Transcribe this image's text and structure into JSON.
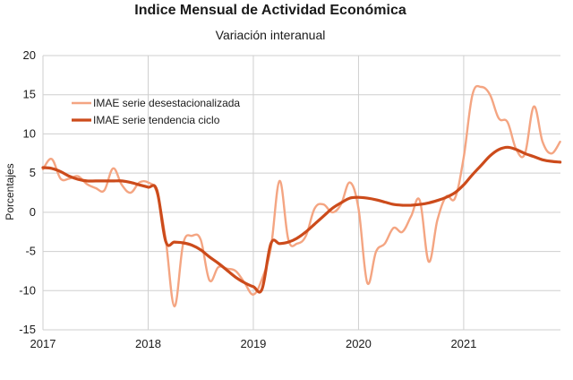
{
  "chart_data": {
    "type": "line",
    "title": "Indice Mensual de  Actividad Económica",
    "subtitle": "Variación interanual",
    "ylabel": "Porcentajes",
    "xlabel": "",
    "ylim": [
      -15,
      20
    ],
    "yticks": [
      20,
      15,
      10,
      5,
      0,
      -5,
      -10,
      -15
    ],
    "xlim": [
      2017,
      2021.92
    ],
    "xticks": [
      "2017",
      "2018",
      "2019",
      "2020",
      "2021"
    ],
    "grid": true,
    "legend": "top-left",
    "series": [
      {
        "name": "IMAE serie desestacionalizada",
        "color": "#f4a582",
        "x": [
          2017.0,
          2017.083,
          2017.167,
          2017.25,
          2017.333,
          2017.417,
          2017.5,
          2017.583,
          2017.667,
          2017.75,
          2017.833,
          2017.917,
          2018.0,
          2018.083,
          2018.167,
          2018.25,
          2018.333,
          2018.417,
          2018.5,
          2018.583,
          2018.667,
          2018.75,
          2018.833,
          2018.917,
          2019.0,
          2019.083,
          2019.167,
          2019.25,
          2019.333,
          2019.417,
          2019.5,
          2019.583,
          2019.667,
          2019.75,
          2019.833,
          2019.917,
          2020.0,
          2020.083,
          2020.167,
          2020.25,
          2020.333,
          2020.417,
          2020.5,
          2020.583,
          2020.667,
          2020.75,
          2020.833,
          2020.917,
          2021.0,
          2021.083,
          2021.167,
          2021.25,
          2021.333,
          2021.417,
          2021.5,
          2021.583,
          2021.667,
          2021.75,
          2021.833,
          2021.917
        ],
        "y": [
          5.5,
          6.8,
          4.3,
          4.3,
          4.6,
          3.6,
          3.1,
          2.8,
          5.6,
          3.5,
          2.5,
          3.8,
          3.8,
          2.5,
          -3.5,
          -12.0,
          -4.0,
          -3.0,
          -3.5,
          -8.7,
          -7.0,
          -7.2,
          -7.5,
          -9.0,
          -10.5,
          -8.5,
          -4.5,
          4.0,
          -3.5,
          -4.0,
          -3.0,
          0.5,
          1.0,
          0.0,
          1.0,
          3.8,
          0.5,
          -9.0,
          -5.0,
          -4.0,
          -2.0,
          -2.5,
          -0.5,
          1.5,
          -6.3,
          -1.0,
          2.0,
          1.8,
          7.0,
          15.0,
          16.0,
          15.0,
          12.0,
          11.5,
          8.0,
          7.5,
          13.5,
          9.0,
          7.5,
          9.0
        ]
      },
      {
        "name": "IMAE serie  tendencia ciclo",
        "color": "#cc4b1b",
        "x": [
          2017.0,
          2017.083,
          2017.167,
          2017.25,
          2017.333,
          2017.417,
          2017.5,
          2017.583,
          2017.667,
          2017.75,
          2017.833,
          2017.917,
          2018.0,
          2018.083,
          2018.167,
          2018.25,
          2018.333,
          2018.417,
          2018.5,
          2018.583,
          2018.667,
          2018.75,
          2018.833,
          2018.917,
          2019.0,
          2019.083,
          2019.167,
          2019.25,
          2019.333,
          2019.417,
          2019.5,
          2019.583,
          2019.667,
          2019.75,
          2019.833,
          2019.917,
          2020.0,
          2020.083,
          2020.167,
          2020.25,
          2020.333,
          2020.417,
          2020.5,
          2020.583,
          2020.667,
          2020.75,
          2020.833,
          2020.917,
          2021.0,
          2021.083,
          2021.167,
          2021.25,
          2021.333,
          2021.417,
          2021.5,
          2021.583,
          2021.667,
          2021.75,
          2021.833,
          2021.917
        ],
        "y": [
          5.7,
          5.6,
          5.2,
          4.6,
          4.2,
          4.0,
          4.0,
          4.0,
          4.0,
          4.0,
          3.8,
          3.5,
          3.2,
          2.8,
          -3.7,
          -3.8,
          -3.9,
          -4.2,
          -4.8,
          -5.7,
          -6.5,
          -7.4,
          -8.3,
          -9.0,
          -9.5,
          -9.8,
          -4.0,
          -4.0,
          -3.8,
          -3.3,
          -2.5,
          -1.5,
          -0.5,
          0.5,
          1.2,
          1.8,
          1.9,
          1.8,
          1.6,
          1.3,
          1.0,
          0.9,
          0.9,
          1.0,
          1.2,
          1.5,
          1.9,
          2.5,
          3.5,
          4.8,
          6.0,
          7.2,
          8.0,
          8.3,
          8.0,
          7.5,
          7.1,
          6.7,
          6.5,
          6.4
        ]
      }
    ]
  }
}
